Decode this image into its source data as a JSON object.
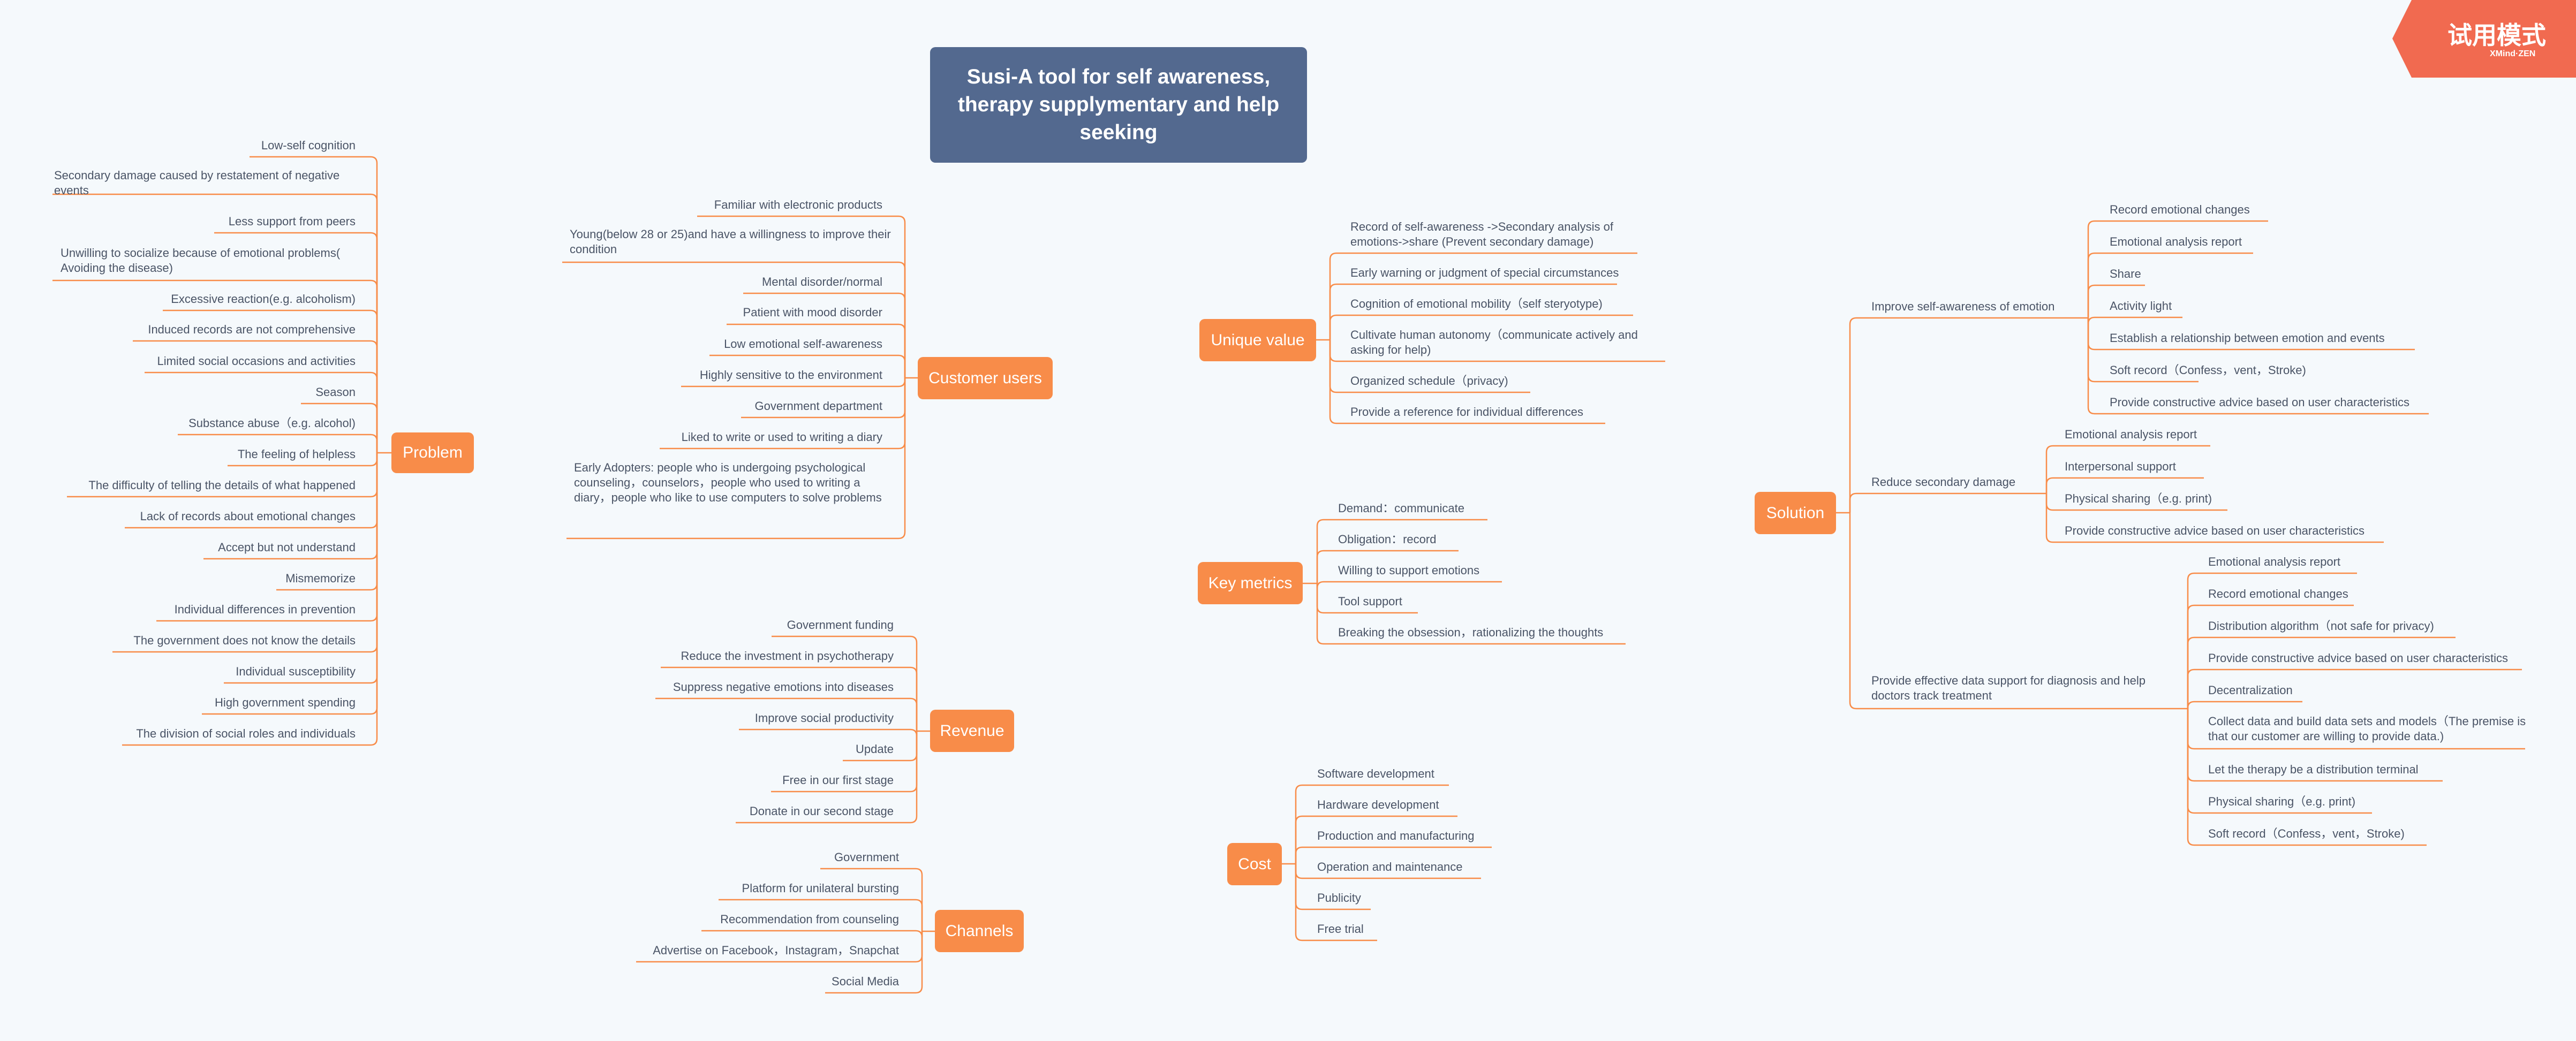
{
  "trial_badge": {
    "label": "试用模式",
    "brand": "XMind·ZEN",
    "color": "#f16a50"
  },
  "colors": {
    "root": "#53698f",
    "branch": "#f88c49",
    "text": "#4a5466",
    "background": "#f5f9fc"
  },
  "root": {
    "title": "Susi-A tool for self awareness, therapy supplymentary and help seeking"
  },
  "branches": {
    "problem": {
      "label": "Problem",
      "items": [
        "Low-self cognition",
        "Secondary damage caused by restatement of negative events",
        "Less support from peers",
        "Unwilling to socialize because of emotional problems( Avoiding the disease)",
        "Excessive reaction(e.g. alcoholism)",
        "Induced records are not comprehensive",
        "Limited social occasions and activities",
        "Season",
        "Substance abuse（e.g. alcohol)",
        "The feeling of helpless",
        "The difficulty of telling the details of what happened",
        "Lack of records about emotional changes",
        "Accept but not understand",
        "Mismemorize",
        "Individual differences in prevention",
        "The government does not know the details",
        "Individual susceptibility",
        "High government spending",
        "The division of social roles and individuals"
      ]
    },
    "customer_users": {
      "label": "Customer users",
      "items": [
        "Familiar with electronic products",
        "Young(below 28 or 25)and have a willingness to improve their condition",
        "Mental disorder/normal",
        "Patient with mood disorder",
        "Low emotional self-awareness",
        "Highly sensitive to the environment",
        "Government department",
        "Liked to write or used to writing a diary",
        "Early Adopters: people who is undergoing psychological counseling，counselors，people who used to writing a diary，people who like to use computers to solve problems"
      ]
    },
    "revenue": {
      "label": "Revenue",
      "items": [
        "Government funding",
        "Reduce the investment in psychotherapy",
        "Suppress negative emotions into diseases",
        "Improve social productivity",
        "Update",
        "Free in our first stage",
        "Donate in our second stage"
      ]
    },
    "channels": {
      "label": "Channels",
      "items": [
        "Government",
        "Platform for unilateral bursting",
        "Recommendation from counseling",
        "Advertise on Facebook，Instagram，Snapchat",
        "Social Media"
      ]
    },
    "unique_value": {
      "label": "Unique value",
      "items": [
        "Record of self-awareness ->Secondary analysis of emotions->share (Prevent secondary damage)",
        "Early warning or judgment of special circumstances",
        "Cognition of emotional mobility（self steryotype)",
        "Cultivate human autonomy（communicate actively and asking for help)",
        "Organized schedule（privacy)",
        "Provide a reference for individual differences"
      ]
    },
    "key_metrics": {
      "label": "Key metrics",
      "items": [
        "Demand：communicate",
        "Obligation：record",
        "Willing to support emotions",
        "Tool support",
        "Breaking the obsession，rationalizing the thoughts"
      ]
    },
    "cost": {
      "label": "Cost",
      "items": [
        "Software development",
        "Hardware development",
        "Production and manufacturing",
        "Operation and maintenance",
        "Publicity",
        "Free trial"
      ]
    },
    "solution": {
      "label": "Solution",
      "groups": [
        {
          "label": "Improve self-awareness of emotion",
          "items": [
            "Record emotional changes",
            "Emotional analysis report",
            "Share",
            "Activity light",
            "Establish a relationship between emotion and events",
            "Soft record（Confess，vent，Stroke)",
            "Provide constructive advice based on user characteristics"
          ]
        },
        {
          "label": "Reduce secondary damage",
          "items": [
            "Emotional analysis report",
            "Interpersonal support",
            "Physical sharing（e.g. print)",
            "Provide constructive advice based on user characteristics"
          ]
        },
        {
          "label": "Provide effective data support for diagnosis and help doctors track treatment",
          "items": [
            "Emotional analysis report",
            "Record emotional changes",
            "Distribution algorithm（not safe for privacy)",
            "Provide constructive advice based on user characteristics",
            "Decentralization",
            "Collect data and build data sets and models（The premise is that our customer are willing to provide data.)",
            "Let the therapy be a distribution terminal",
            "Physical sharing（e.g. print)",
            "Soft record（Confess，vent，Stroke)"
          ]
        }
      ]
    }
  }
}
